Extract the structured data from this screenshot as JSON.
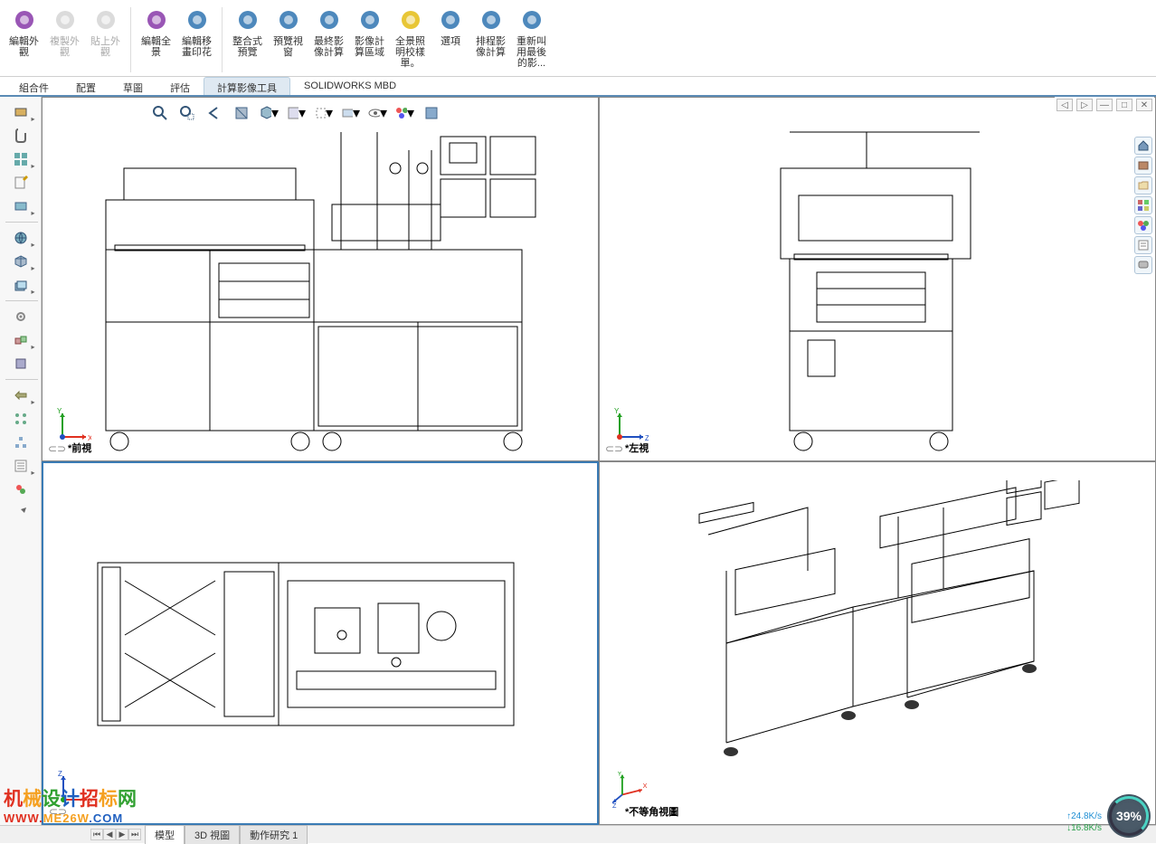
{
  "ribbon": {
    "buttons": [
      {
        "label": "編輯外\n觀",
        "color": "#8e44ad",
        "disabled": false
      },
      {
        "label": "複製外\n觀",
        "color": "#888",
        "disabled": true
      },
      {
        "label": "貼上外\n觀",
        "color": "#888",
        "disabled": true
      },
      {
        "label": "編輯全\n景",
        "color": "#8e44ad",
        "disabled": false
      },
      {
        "label": "編輯移\n畫印花",
        "color": "#3a7bb5",
        "disabled": false
      },
      {
        "label": "整合式\n預覽",
        "color": "#3a7bb5",
        "disabled": false
      },
      {
        "label": "預覽視\n窗",
        "color": "#3a7bb5",
        "disabled": false
      },
      {
        "label": "最終影\n像計算",
        "color": "#3a7bb5",
        "disabled": false
      },
      {
        "label": "影像計\n算區域",
        "color": "#3a7bb5",
        "disabled": false
      },
      {
        "label": "全景照\n明校樣\n單。",
        "color": "#e6c020",
        "disabled": false
      },
      {
        "label": "選項",
        "color": "#3a7bb5",
        "disabled": false
      },
      {
        "label": "排程影\n像計算",
        "color": "#3a7bb5",
        "disabled": false
      },
      {
        "label": "重新叫\n用最後\n的影...",
        "color": "#3a7bb5",
        "disabled": false
      }
    ]
  },
  "tabs": [
    "組合件",
    "配置",
    "草圖",
    "評估",
    "計算影像工具",
    "SOLIDWORKS MBD"
  ],
  "active_tab_index": 4,
  "viewports": [
    {
      "label": "*前視",
      "triad": {
        "x": "X",
        "y": "Y",
        "xcolor": "#e03020",
        "ycolor": "#20a020"
      }
    },
    {
      "label": "*左視",
      "triad": {
        "x": "Z",
        "y": "Y",
        "xcolor": "#2050c0",
        "ycolor": "#20a020"
      }
    },
    {
      "label": "",
      "triad": {
        "x": "X",
        "y": "Z",
        "xcolor": "#e03020",
        "ycolor": "#2050c0"
      }
    },
    {
      "label": "*不等角視圖",
      "triad": {
        "iso": true
      }
    }
  ],
  "bottom_tabs": [
    "模型",
    "3D 視圖",
    "動作研究 1"
  ],
  "active_bottom_tab": 0,
  "netspeed": {
    "up": "24.8K/s",
    "down": "16.8K/s"
  },
  "speed_pct": "39%",
  "watermark": {
    "line1": "机械设计招标网",
    "line2": "WWW.ME26W.COM"
  },
  "colors": {
    "machine_frame": "#1a1a1a",
    "machine_green": "#3a9040",
    "machine_purple": "#9050a0",
    "machine_red": "#d04030",
    "machine_gray": "#c0c0c0",
    "axis_red": "#e03020",
    "axis_green": "#20a020",
    "axis_blue": "#2050c0"
  }
}
